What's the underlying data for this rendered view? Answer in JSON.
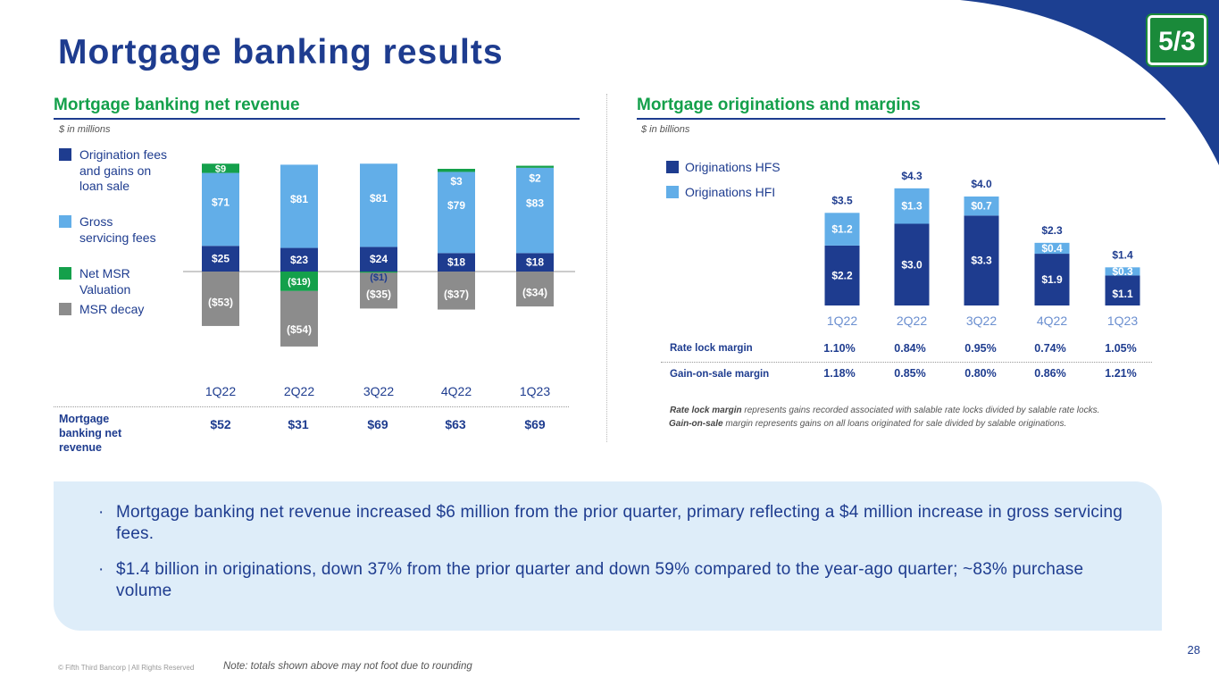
{
  "title": "Mortgage banking results",
  "page_number": "28",
  "copyright": "© Fifth Third Bancorp | All Rights Reserved",
  "note": "Note: totals shown above may not foot due to rounding",
  "logo": {
    "text": "5/3"
  },
  "colors": {
    "navy": "#1e3c8f",
    "light_blue": "#62aee8",
    "green": "#14a04b",
    "gray": "#8c8c8c",
    "corner": "#1c3f91"
  },
  "left": {
    "heading": "Mortgage banking net revenue",
    "unit": "$ in millions",
    "legend": [
      {
        "label": "Origination fees and gains on loan sale",
        "color": "#1e3c8f"
      },
      {
        "label": "Gross servicing fees",
        "color": "#62aee8"
      },
      {
        "label": "Net MSR Valuation",
        "color": "#14a04b"
      },
      {
        "label": "MSR decay",
        "color": "#8c8c8c"
      }
    ],
    "total_label": "Mortgage banking net revenue",
    "totals": [
      "$52",
      "$31",
      "$69",
      "$63",
      "$69"
    ]
  },
  "right": {
    "heading": "Mortgage originations and margins",
    "unit": "$ in billions",
    "legend": [
      {
        "label": "Originations HFS",
        "color": "#1e3c8f"
      },
      {
        "label": "Originations HFI",
        "color": "#62aee8"
      }
    ],
    "margins": [
      {
        "label": "Rate lock margin",
        "values": [
          "1.10%",
          "0.84%",
          "0.95%",
          "0.74%",
          "1.05%"
        ]
      },
      {
        "label": "Gain-on-sale margin",
        "values": [
          "1.18%",
          "0.85%",
          "0.80%",
          "0.86%",
          "1.21%"
        ]
      }
    ],
    "footnote1_bold": "Rate lock margin",
    "footnote1_rest": " represents gains recorded associated with salable rate locks divided by salable rate locks.",
    "footnote2_bold": "Gain-on-sale",
    "footnote2_rest": " margin represents gains on all loans originated for sale divided by salable originations."
  },
  "bullets": [
    "Mortgage banking net revenue increased $6 million from the prior quarter, primary reflecting a $4 million increase in gross servicing fees.",
    "$1.4 billion in originations, down 37% from the prior quarter and down 59% compared to the year-ago quarter; ~83% purchase volume"
  ],
  "chart_data": [
    {
      "type": "bar",
      "stacked": true,
      "title": "Mortgage banking net revenue",
      "ylabel": "$ in millions",
      "categories": [
        "1Q22",
        "2Q22",
        "3Q22",
        "4Q22",
        "1Q23"
      ],
      "series": [
        {
          "name": "Origination fees and gains on loan sale",
          "values": [
            25,
            23,
            24,
            18,
            18
          ],
          "labels": [
            "$25",
            "$23",
            "$24",
            "$18",
            "$18"
          ]
        },
        {
          "name": "Gross servicing fees",
          "values": [
            71,
            81,
            81,
            79,
            83
          ],
          "labels": [
            "$71",
            "$81",
            "$81",
            "$79",
            "$83"
          ]
        },
        {
          "name": "Net MSR Valuation",
          "values": [
            9,
            -19,
            -1,
            3,
            2
          ],
          "labels": [
            "$9",
            "($19)",
            "($1)",
            "$3",
            "$2"
          ]
        },
        {
          "name": "MSR decay",
          "values": [
            -53,
            -54,
            -35,
            -37,
            -34
          ],
          "labels": [
            "($53)",
            "($54)",
            "($35)",
            "($37)",
            "($34)"
          ]
        }
      ]
    },
    {
      "type": "bar",
      "stacked": true,
      "title": "Mortgage originations and margins",
      "ylabel": "$ in billions",
      "categories": [
        "1Q22",
        "2Q22",
        "3Q22",
        "4Q22",
        "1Q23"
      ],
      "series": [
        {
          "name": "Originations HFS",
          "values": [
            2.2,
            3.0,
            3.3,
            1.9,
            1.1
          ],
          "labels": [
            "$2.2",
            "$3.0",
            "$3.3",
            "$1.9",
            "$1.1"
          ]
        },
        {
          "name": "Originations HFI",
          "values": [
            1.2,
            1.3,
            0.7,
            0.4,
            0.3
          ],
          "labels": [
            "$1.2",
            "$1.3",
            "$0.7",
            "$0.4",
            "$0.3"
          ]
        }
      ],
      "totals": [
        3.5,
        4.3,
        4.0,
        2.3,
        1.4
      ],
      "total_labels": [
        "$3.5",
        "$4.3",
        "$4.0",
        "$2.3",
        "$1.4"
      ]
    }
  ]
}
